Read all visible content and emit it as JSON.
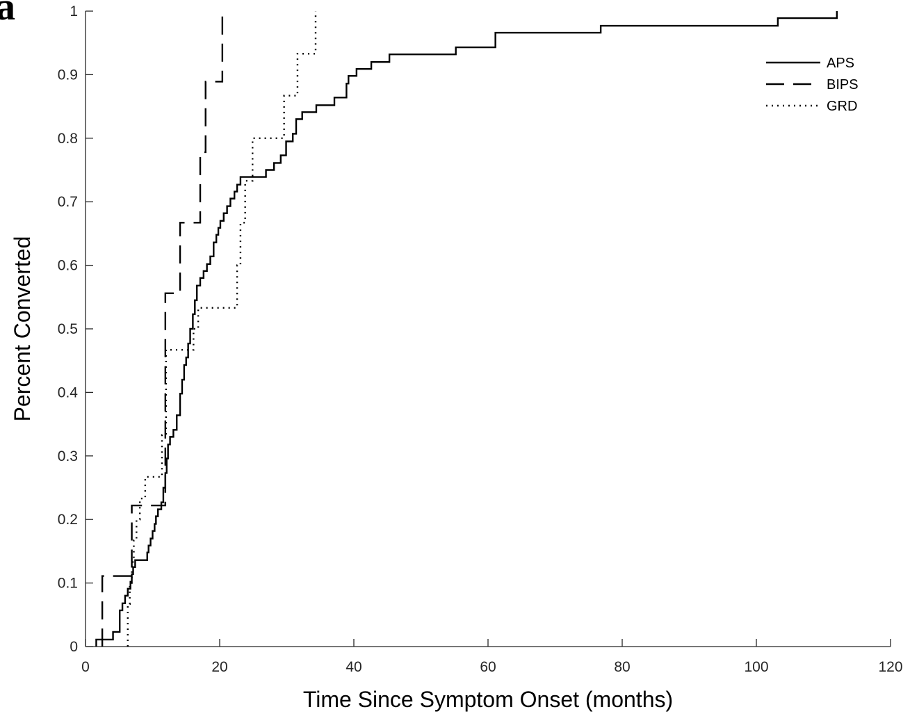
{
  "panel_label": "a",
  "chart_data": {
    "type": "line",
    "step": true,
    "title": "",
    "xlabel": "Time Since Symptom Onset (months)",
    "ylabel": "Percent Converted",
    "xlim": [
      0,
      120
    ],
    "ylim": [
      0,
      1
    ],
    "xticks": [
      0,
      20,
      40,
      60,
      80,
      100,
      120
    ],
    "yticks": [
      0,
      0.1,
      0.2,
      0.3,
      0.4,
      0.5,
      0.6,
      0.7,
      0.8,
      0.9,
      1
    ],
    "xtick_labels": [
      "0",
      "20",
      "40",
      "60",
      "80",
      "100",
      "120"
    ],
    "ytick_labels": [
      "0",
      "0.1",
      "0.2",
      "0.3",
      "0.4",
      "0.5",
      "0.6",
      "0.7",
      "0.8",
      "0.9",
      "1"
    ],
    "grid": false,
    "legend_position": "top-right",
    "series": [
      {
        "name": "APS",
        "dash": "solid",
        "color": "#000000",
        "x": [
          1.6,
          2.5,
          4.1,
          5.1,
          5.5,
          5.9,
          6.3,
          6.7,
          6.9,
          7.1,
          7.4,
          9.2,
          9.4,
          9.7,
          10.0,
          10.3,
          10.5,
          10.8,
          11.3,
          11.6,
          11.9,
          12.1,
          12.3,
          12.6,
          13.1,
          13.6,
          14.1,
          14.4,
          14.7,
          15.0,
          15.3,
          15.6,
          16.0,
          16.3,
          16.6,
          17.1,
          17.6,
          18.1,
          18.6,
          19.1,
          19.5,
          19.8,
          20.1,
          20.6,
          21.1,
          21.6,
          22.2,
          22.6,
          23.1,
          23.5,
          24.1,
          24.9,
          26.9,
          28.1,
          29.1,
          29.9,
          30.9,
          31.4,
          31.8,
          32.3,
          34.4,
          35.1,
          37.1,
          38.9,
          39.2,
          40.4,
          42.6,
          45.3,
          55.2,
          61.1,
          76.8,
          103.2,
          112.0
        ],
        "y": [
          0.011,
          0.011,
          0.023,
          0.057,
          0.068,
          0.08,
          0.091,
          0.102,
          0.114,
          0.125,
          0.136,
          0.148,
          0.159,
          0.17,
          0.182,
          0.193,
          0.205,
          0.216,
          0.227,
          0.25,
          0.273,
          0.296,
          0.318,
          0.33,
          0.341,
          0.364,
          0.398,
          0.42,
          0.443,
          0.455,
          0.477,
          0.5,
          0.523,
          0.545,
          0.568,
          0.58,
          0.591,
          0.602,
          0.614,
          0.636,
          0.648,
          0.659,
          0.67,
          0.682,
          0.693,
          0.705,
          0.716,
          0.727,
          0.739,
          0.739,
          0.739,
          0.739,
          0.75,
          0.761,
          0.773,
          0.795,
          0.807,
          0.83,
          0.83,
          0.841,
          0.852,
          0.852,
          0.864,
          0.886,
          0.898,
          0.909,
          0.92,
          0.932,
          0.943,
          0.966,
          0.977,
          0.989,
          1.0
        ]
      },
      {
        "name": "BIPS",
        "dash": "dashed",
        "color": "#000000",
        "x": [
          2.5,
          6.9,
          11.9,
          14.1,
          17.1,
          17.9,
          20.4
        ],
        "y": [
          0.111,
          0.222,
          0.556,
          0.667,
          0.778,
          0.889,
          1.0
        ]
      },
      {
        "name": "GRD",
        "dash": "dotted",
        "color": "#000000",
        "x": [
          6.3,
          6.6,
          6.9,
          7.2,
          7.6,
          8.1,
          8.9,
          11.4,
          12.0,
          16.1,
          16.8,
          22.6,
          23.1,
          23.8,
          24.9,
          29.6,
          31.6,
          34.3
        ],
        "y": [
          0.067,
          0.1,
          0.133,
          0.167,
          0.2,
          0.233,
          0.267,
          0.333,
          0.467,
          0.5,
          0.533,
          0.6,
          0.667,
          0.733,
          0.8,
          0.867,
          0.933,
          1.0
        ]
      }
    ]
  }
}
